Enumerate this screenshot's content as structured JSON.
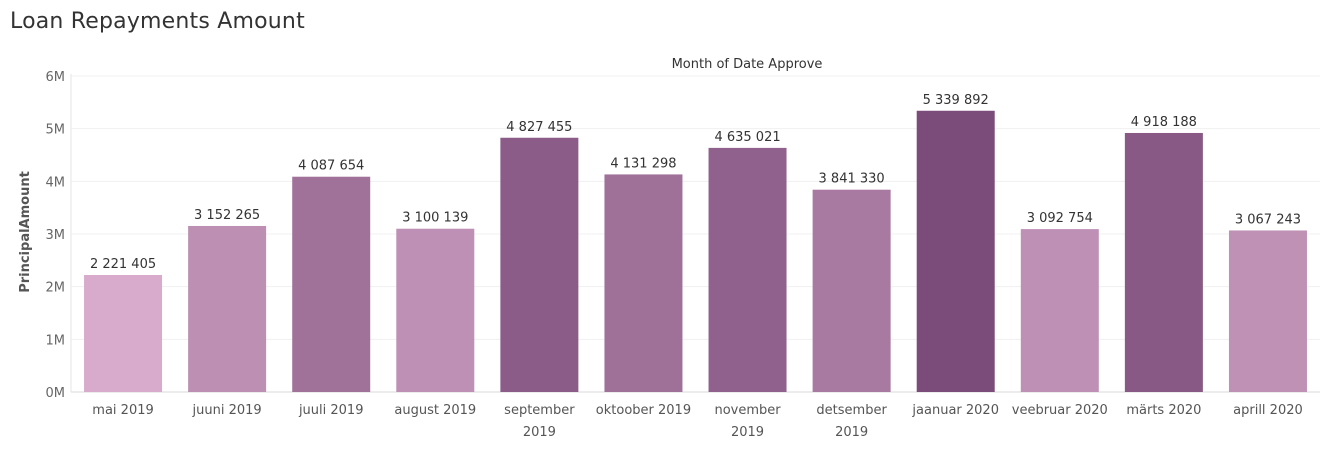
{
  "page": {
    "title": "Loan Repayments Amount"
  },
  "chart_data": {
    "type": "bar",
    "title": "Month of Date Approve",
    "xlabel": "",
    "ylabel": "PrincipalAmount",
    "ylim": [
      0,
      6000000
    ],
    "yticks": [
      0,
      1000000,
      2000000,
      3000000,
      4000000,
      5000000,
      6000000
    ],
    "ytick_labels": [
      "0M",
      "1M",
      "2M",
      "3M",
      "4M",
      "5M",
      "6M"
    ],
    "grid": true,
    "categories": [
      [
        "mai 2019"
      ],
      [
        "juuni 2019"
      ],
      [
        "juuli 2019"
      ],
      [
        "august 2019"
      ],
      [
        "september",
        "2019"
      ],
      [
        "oktoober 2019"
      ],
      [
        "november",
        "2019"
      ],
      [
        "detsember",
        "2019"
      ],
      [
        "jaanuar 2020"
      ],
      [
        "veebruar 2020"
      ],
      [
        "märts 2020"
      ],
      [
        "aprill 2020"
      ]
    ],
    "values": [
      2221405,
      3152265,
      4087654,
      3100139,
      4827455,
      4131298,
      4635021,
      3841330,
      5339892,
      3092754,
      4918188,
      3067243
    ],
    "value_labels": [
      "2 221 405",
      "3 152 265",
      "4 087 654",
      "3 100 139",
      "4 827 455",
      "4 131 298",
      "4 635 021",
      "3 841 330",
      "5 339 892",
      "3 092 754",
      "4 918 188",
      "3 067 243"
    ],
    "color_scale": {
      "low": "#d8abcc",
      "high": "#7b4c79"
    }
  }
}
